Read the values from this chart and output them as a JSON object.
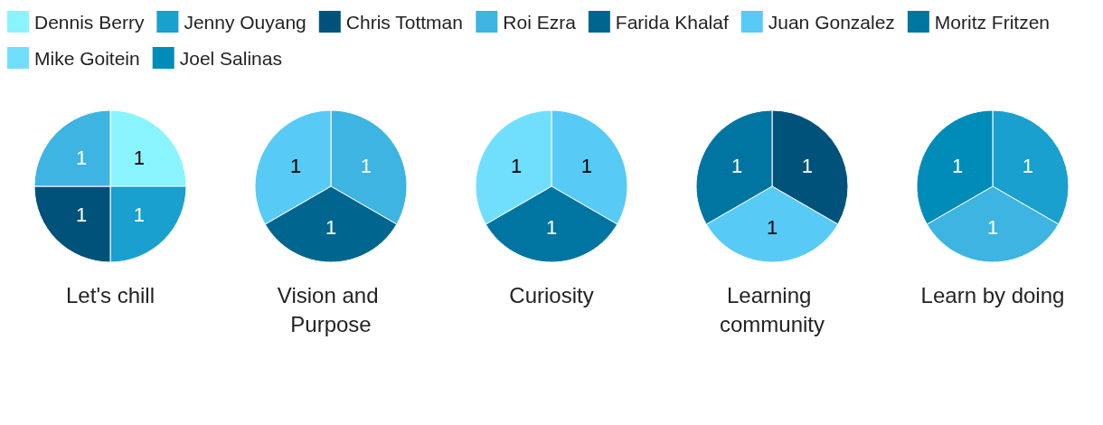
{
  "chart_data": {
    "type": "pie",
    "categories": [
      "Dennis Berry",
      "Jenny Ouyang",
      "Chris Tottman",
      "Roi Ezra",
      "Farida Khalaf",
      "Juan Gonzalez",
      "Moritz Fritzen",
      "Mike Goitein",
      "Joel Salinas"
    ],
    "colors": [
      "#8af4fe",
      "#19a0ce",
      "#00527a",
      "#3db4e2",
      "#006690",
      "#58caf6",
      "#0075a2",
      "#70dffe",
      "#008cb8"
    ],
    "series": [
      {
        "name": "Let's chill",
        "values": [
          1,
          1,
          1,
          1,
          null,
          null,
          null,
          null,
          null
        ]
      },
      {
        "name": "Vision and Purpose",
        "values": [
          null,
          null,
          null,
          1,
          1,
          1,
          null,
          null,
          null
        ]
      },
      {
        "name": "Curiosity",
        "values": [
          null,
          null,
          null,
          null,
          null,
          1,
          1,
          1,
          null
        ]
      },
      {
        "name": "Learning community",
        "values": [
          null,
          null,
          1,
          null,
          null,
          1,
          1,
          null,
          null
        ]
      },
      {
        "name": "Learn by doing",
        "values": [
          null,
          1,
          null,
          1,
          null,
          null,
          null,
          null,
          1
        ]
      }
    ],
    "data_labels": true,
    "legend": "top left"
  }
}
